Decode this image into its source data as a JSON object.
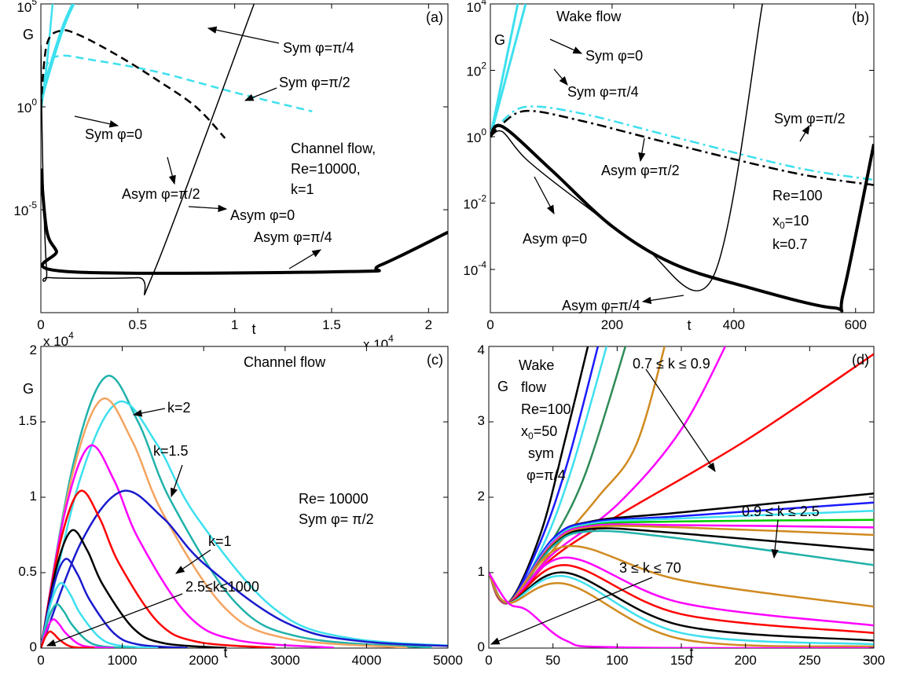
{
  "chart_data": [
    {
      "type": "line",
      "panel_label": "(a)",
      "yscale": "log",
      "xlabel": "t",
      "ylabel": "G",
      "xscale_label": "x 10^4",
      "xlim": [
        0,
        21000
      ],
      "ylim": [
        1e-10,
        100000
      ],
      "xticks": [
        0,
        {
          "value": 5000,
          "label": "0.5"
        },
        {
          "value": 10000,
          "label": "1"
        },
        {
          "value": 15000,
          "label": "1.5"
        },
        {
          "value": 20000,
          "label": "2"
        }
      ],
      "yticks": [
        {
          "value": 1e-05,
          "label": "10^-5"
        },
        {
          "value": 1,
          "label": "10^0"
        },
        {
          "value": 100000,
          "label": "10^5"
        }
      ],
      "annotations": [
        "Sym φ=π/4",
        "Sym φ=π/2",
        "Sym φ=0",
        "Channel flow,",
        "Re=10000,",
        "k=1",
        "Asym φ=π/2",
        "Asym φ=0",
        "Asym φ=π/4"
      ],
      "series": [
        {
          "color": "#3de0ee",
          "width": 4.5,
          "x": [
            0,
            200,
            1200,
            2200
          ],
          "values": [
            1,
            10,
            10000,
            1000000
          ]
        },
        {
          "color": "#3de0ee",
          "width": 2.5,
          "x": [
            0,
            300,
            700
          ],
          "values": [
            1,
            100,
            1000000
          ]
        },
        {
          "color": "#3de0ee",
          "width": 2.5,
          "dash": "dashed",
          "x": [
            0,
            300,
            1000,
            2500,
            6000,
            10000,
            14000
          ],
          "values": [
            1,
            100,
            300,
            200,
            50,
            5,
            0.6
          ]
        },
        {
          "color": "#000000",
          "width": 2.5,
          "dash": "dashed",
          "x": [
            0,
            300,
            1000,
            2000,
            4000,
            6000,
            8000,
            9500
          ],
          "values": [
            1,
            1000,
            5000,
            3000,
            300,
            20,
            1,
            0.03
          ]
        },
        {
          "color": "#000000",
          "width": 1.5,
          "x": [
            0,
            100,
            300,
            500,
            5000,
            5800,
            11000
          ],
          "values": [
            1000,
            0.001,
            1e-08,
            5e-09,
            5e-09,
            8e-09,
            100000
          ]
        },
        {
          "color": "#000000",
          "width": 4,
          "x": [
            0,
            300,
            800,
            1300,
            16000,
            17500,
            21000
          ],
          "values": [
            0.001,
            1e-06,
            1e-07,
            1e-08,
            1e-08,
            2e-08,
            8e-07
          ]
        }
      ]
    },
    {
      "type": "line",
      "panel_label": "(b)",
      "yscale": "log",
      "xlabel": "t",
      "ylabel": "G",
      "xlim": [
        0,
        630
      ],
      "ylim": [
        5e-06,
        10000
      ],
      "xticks": [
        0,
        200,
        400,
        600
      ],
      "yticks": [
        {
          "value": 0.0001,
          "label": "10^-4"
        },
        {
          "value": 0.01,
          "label": "10^-2"
        },
        {
          "value": 1,
          "label": "10^0"
        },
        {
          "value": 100,
          "label": "10^2"
        },
        {
          "value": 10000,
          "label": "10^4"
        }
      ],
      "annotations": [
        "Wake flow",
        "Sym φ=0",
        "Sym φ=π/4",
        "Sym φ=π/2",
        "Asym φ=π/2",
        "Re=100",
        "x_0=10",
        "k=0.7",
        "Asym φ=0",
        "Asym φ=π/4"
      ],
      "series": [
        {
          "color": "#3de0ee",
          "width": 3,
          "x": [
            0,
            45
          ],
          "values": [
            1,
            10000
          ]
        },
        {
          "color": "#3de0ee",
          "width": 3,
          "x": [
            0,
            58
          ],
          "values": [
            1,
            10000
          ]
        },
        {
          "color": "#3de0ee",
          "width": 2.5,
          "dash": "dashdot",
          "x": [
            0,
            20,
            60,
            150,
            300,
            500,
            630
          ],
          "values": [
            1,
            3,
            8,
            5,
            1,
            0.12,
            0.05
          ]
        },
        {
          "color": "#000000",
          "width": 2.5,
          "dash": "dashdot",
          "x": [
            0,
            20,
            60,
            150,
            300,
            500,
            630
          ],
          "values": [
            1,
            2.5,
            6,
            3,
            0.6,
            0.08,
            0.035
          ]
        },
        {
          "color": "#000000",
          "width": 1.5,
          "x": [
            0,
            20,
            60,
            150,
            250,
            366,
            447
          ],
          "values": [
            1,
            1.4,
            0.2,
            0.01,
            0.0005,
            6e-05,
            10000
          ]
        },
        {
          "color": "#000000",
          "width": 4,
          "x": [
            0,
            20,
            100,
            200,
            300,
            420,
            563,
            580,
            630
          ],
          "values": [
            1,
            2,
            0.1,
            0.002,
            0.00015,
            3e-05,
            7e-06,
            2e-05,
            0.6
          ]
        }
      ]
    },
    {
      "type": "line",
      "panel_label": "(c)",
      "yscale": "linear",
      "xlabel": "t",
      "ylabel": "G",
      "yscale_label": "x 10^4",
      "xlim": [
        0,
        5000
      ],
      "ylim": [
        0,
        20000
      ],
      "xticks": [
        0,
        1000,
        2000,
        3000,
        4000,
        5000
      ],
      "yticks": [
        0,
        {
          "value": 5000,
          "label": "0.5"
        },
        {
          "value": 10000,
          "label": "1"
        },
        {
          "value": 15000,
          "label": "1.5"
        },
        {
          "value": 20000,
          "label": "2"
        }
      ],
      "annotations": [
        "Channel flow",
        "k=2",
        "k=1.5",
        "Re= 10000",
        "Sym φ= π/2",
        "k=1",
        "2.5≤k≤1000"
      ],
      "series": [
        {
          "color": "#20b2aa",
          "width": 2.5,
          "x": [
            0,
            400,
            800,
            1200,
            1600,
            2400,
            3200,
            4800
          ],
          "values": [
            0,
            12240,
            18000,
            14940,
            9720,
            2970,
            720,
            29
          ]
        },
        {
          "color": "#3de0ee",
          "width": 2.5,
          "x": [
            0,
            475,
            950,
            1425,
            1900,
            2850,
            3800,
            5700
          ],
          "values": [
            0,
            11084,
            16300,
            13529,
            8802,
            2690,
            652,
            26
          ]
        },
        {
          "color": "#f4a460",
          "width": 2.5,
          "x": [
            0,
            375,
            750,
            1125,
            1500,
            2250,
            3000,
            4500
          ],
          "values": [
            0,
            11220,
            16500,
            13695,
            8910,
            2723,
            660,
            26
          ]
        },
        {
          "color": "#ff00ff",
          "width": 2.5,
          "x": [
            0,
            300,
            600,
            900,
            1200,
            1800,
            2400,
            3600
          ],
          "values": [
            0,
            9112,
            13400,
            11122,
            7236,
            2211,
            536,
            21
          ]
        },
        {
          "color": "#1a1acd",
          "width": 2.5,
          "x": [
            0,
            500,
            1000,
            1500,
            2000,
            3000,
            4000,
            6000
          ],
          "values": [
            0,
            7072,
            10400,
            8632,
            5616,
            1716,
            416,
            17
          ]
        },
        {
          "color": "#ff0000",
          "width": 2.5,
          "x": [
            0,
            240,
            480,
            720,
            960,
            1440,
            1920,
            2880
          ],
          "values": [
            0,
            7072,
            10400,
            8632,
            5616,
            1716,
            416,
            17
          ]
        },
        {
          "color": "#000000",
          "width": 2.5,
          "x": [
            0,
            190,
            380,
            570,
            760,
            1140,
            1520,
            2280
          ],
          "values": [
            0,
            5304,
            7800,
            6474,
            4212,
            1287,
            312,
            12
          ]
        },
        {
          "color": "#1a1acd",
          "width": 2.5,
          "x": [
            0,
            150,
            300,
            450,
            600,
            900,
            1200,
            1800
          ],
          "values": [
            0,
            4012,
            5900,
            4897,
            3186,
            974,
            236,
            9
          ]
        },
        {
          "color": "#3de0ee",
          "width": 2.5,
          "x": [
            0,
            120,
            240,
            360,
            480,
            720,
            960,
            1440
          ],
          "values": [
            0,
            2924,
            4300,
            3569,
            2322,
            710,
            172,
            7
          ]
        },
        {
          "color": "#20b2aa",
          "width": 2.5,
          "x": [
            0,
            95,
            190,
            285,
            380,
            570,
            760,
            1140
          ],
          "values": [
            0,
            1972,
            2900,
            2407,
            1566,
            479,
            116,
            5
          ]
        },
        {
          "color": "#ff00ff",
          "width": 2.5,
          "x": [
            0,
            75,
            150,
            225,
            300,
            450,
            600,
            900
          ],
          "values": [
            0,
            1292,
            1900,
            1577,
            1026,
            314,
            76,
            3
          ]
        },
        {
          "color": "#ff0000",
          "width": 2.5,
          "x": [
            0,
            55,
            110,
            165,
            220,
            330,
            440,
            660
          ],
          "values": [
            0,
            748,
            1100,
            913,
            594,
            182,
            44,
            2
          ]
        }
      ]
    },
    {
      "type": "line",
      "panel_label": "(d)",
      "yscale": "linear",
      "xlabel": "t",
      "ylabel": "G",
      "xlim": [
        0,
        300
      ],
      "ylim": [
        0,
        4
      ],
      "xticks": [
        0,
        50,
        100,
        150,
        200,
        250,
        300
      ],
      "yticks": [
        0,
        1,
        2,
        3,
        4
      ],
      "annotations": [
        "Wake",
        "flow",
        "Re=100",
        "x_0=50",
        "sym",
        "φ=π/4",
        "0.7 ≤ k ≤ 0.9",
        "0.9 ≤ k ≤ 2.5",
        "3 ≤ k ≤ 70"
      ],
      "series": [
        {
          "color": "#000000",
          "width": 2.5,
          "x": [
            0,
            15,
            40,
            60,
            80
          ],
          "values": [
            1,
            0.6,
            1.5,
            2.8,
            4.2
          ]
        },
        {
          "color": "#1a1aff",
          "width": 2.5,
          "x": [
            0,
            15,
            40,
            62,
            88
          ],
          "values": [
            1,
            0.6,
            1.4,
            2.5,
            4.2
          ]
        },
        {
          "color": "#3de0ee",
          "width": 2.5,
          "x": [
            0,
            15,
            42,
            65,
            95
          ],
          "values": [
            1,
            0.6,
            1.35,
            2.4,
            4.2
          ]
        },
        {
          "color": "#2e8b57",
          "width": 2.5,
          "x": [
            0,
            15,
            45,
            75,
            110
          ],
          "values": [
            1,
            0.6,
            1.3,
            2.3,
            4.2
          ]
        },
        {
          "color": "#d08a20",
          "width": 2.5,
          "x": [
            0,
            15,
            50,
            85,
            115,
            140
          ],
          "values": [
            1,
            0.6,
            1.3,
            2.0,
            2.7,
            4.2
          ]
        },
        {
          "color": "#ff00ff",
          "width": 2.5,
          "x": [
            0,
            15,
            50,
            100,
            150,
            190
          ],
          "values": [
            1,
            0.6,
            1.25,
            1.9,
            2.9,
            4.2
          ]
        },
        {
          "color": "#ff0000",
          "width": 2.5,
          "x": [
            0,
            15,
            50,
            100,
            200,
            300
          ],
          "values": [
            1,
            0.6,
            1.2,
            1.75,
            2.75,
            3.9
          ]
        },
        {
          "color": "#000000",
          "width": 2.5,
          "x": [
            0,
            15,
            50,
            80,
            150,
            300
          ],
          "values": [
            1,
            0.6,
            1.45,
            1.68,
            1.8,
            2.05
          ]
        },
        {
          "color": "#1a1aff",
          "width": 2.5,
          "x": [
            0,
            15,
            50,
            80,
            150,
            300
          ],
          "values": [
            1,
            0.6,
            1.45,
            1.67,
            1.75,
            1.93
          ]
        },
        {
          "color": "#3de0ee",
          "width": 2.5,
          "x": [
            0,
            15,
            50,
            80,
            150,
            300
          ],
          "values": [
            1,
            0.6,
            1.42,
            1.65,
            1.72,
            1.82
          ]
        },
        {
          "color": "#00cc00",
          "width": 2.5,
          "x": [
            0,
            15,
            50,
            80,
            150,
            300
          ],
          "values": [
            1,
            0.6,
            1.4,
            1.63,
            1.68,
            1.7
          ]
        },
        {
          "color": "#ff00ff",
          "width": 2.5,
          "x": [
            0,
            15,
            50,
            80,
            150,
            300
          ],
          "values": [
            1,
            0.6,
            1.4,
            1.62,
            1.63,
            1.6
          ]
        },
        {
          "color": "#d08a20",
          "width": 2.5,
          "x": [
            0,
            15,
            50,
            80,
            150,
            300
          ],
          "values": [
            1,
            0.6,
            1.38,
            1.6,
            1.6,
            1.5
          ]
        },
        {
          "color": "#000000",
          "width": 2.5,
          "x": [
            0,
            15,
            50,
            80,
            150,
            300
          ],
          "values": [
            1,
            0.6,
            1.36,
            1.58,
            1.52,
            1.3
          ]
        },
        {
          "color": "#20b2aa",
          "width": 2.5,
          "x": [
            0,
            15,
            50,
            80,
            150,
            300
          ],
          "values": [
            1,
            0.6,
            1.35,
            1.55,
            1.45,
            1.1
          ]
        },
        {
          "color": "#d08a20",
          "width": 2.5,
          "x": [
            0,
            15,
            60,
            150,
            300
          ],
          "values": [
            1,
            0.6,
            1.35,
            0.9,
            0.55
          ]
        },
        {
          "color": "#ff00ff",
          "width": 2.5,
          "x": [
            0,
            15,
            60,
            150,
            300
          ],
          "values": [
            1,
            0.6,
            1.2,
            0.6,
            0.3
          ]
        },
        {
          "color": "#ff0000",
          "width": 2.5,
          "x": [
            0,
            15,
            60,
            150,
            300
          ],
          "values": [
            1,
            0.6,
            1.1,
            0.45,
            0.2
          ]
        },
        {
          "color": "#000000",
          "width": 2.5,
          "x": [
            0,
            15,
            60,
            150,
            300
          ],
          "values": [
            1,
            0.6,
            1.0,
            0.3,
            0.1
          ]
        },
        {
          "color": "#3de0ee",
          "width": 2.5,
          "x": [
            0,
            15,
            60,
            150,
            300
          ],
          "values": [
            1,
            0.6,
            0.95,
            0.2,
            0.05
          ]
        },
        {
          "color": "#d08a20",
          "width": 2.5,
          "x": [
            0,
            15,
            60,
            150,
            300
          ],
          "values": [
            1,
            0.6,
            0.85,
            0.12,
            0.02
          ]
        },
        {
          "color": "#ff00ff",
          "width": 2.5,
          "x": [
            0,
            15,
            30,
            60,
            100,
            300
          ],
          "values": [
            1,
            0.6,
            0.5,
            0.1,
            0.01,
            0
          ]
        }
      ]
    }
  ]
}
